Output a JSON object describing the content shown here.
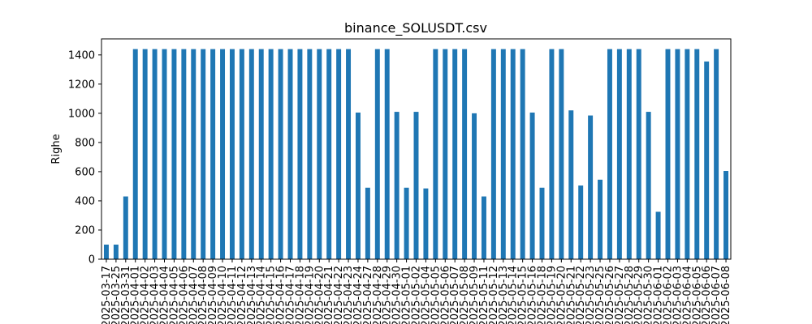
{
  "chart_data": {
    "type": "bar",
    "title": "binance_SOLUSDT.csv",
    "xlabel": "",
    "ylabel": "Righe",
    "ylim": [
      0,
      1510
    ],
    "yticks": [
      0,
      200,
      400,
      600,
      800,
      1000,
      1200,
      1400
    ],
    "grid": false,
    "color": "#1f77b4",
    "categories": [
      "2025-03-17",
      "2025-03-25",
      "2025-03-31",
      "2025-04-01",
      "2025-04-02",
      "2025-04-03",
      "2025-04-04",
      "2025-04-05",
      "2025-04-06",
      "2025-04-07",
      "2025-04-08",
      "2025-04-09",
      "2025-04-10",
      "2025-04-11",
      "2025-04-12",
      "2025-04-13",
      "2025-04-14",
      "2025-04-15",
      "2025-04-16",
      "2025-04-17",
      "2025-04-18",
      "2025-04-19",
      "2025-04-20",
      "2025-04-21",
      "2025-04-22",
      "2025-04-23",
      "2025-04-24",
      "2025-04-27",
      "2025-04-28",
      "2025-04-29",
      "2025-04-30",
      "2025-05-01",
      "2025-05-02",
      "2025-05-04",
      "2025-05-05",
      "2025-05-06",
      "2025-05-07",
      "2025-05-08",
      "2025-05-09",
      "2025-05-11",
      "2025-05-12",
      "2025-05-13",
      "2025-05-14",
      "2025-05-15",
      "2025-05-16",
      "2025-05-18",
      "2025-05-19",
      "2025-05-20",
      "2025-05-21",
      "2025-05-22",
      "2025-05-23",
      "2025-05-25",
      "2025-05-26",
      "2025-05-27",
      "2025-05-28",
      "2025-05-29",
      "2025-05-30",
      "2025-06-01",
      "2025-06-02",
      "2025-06-03",
      "2025-06-04",
      "2025-06-05",
      "2025-06-06",
      "2025-06-07",
      "2025-06-08"
    ],
    "values": [
      100,
      100,
      430,
      1440,
      1440,
      1440,
      1440,
      1440,
      1440,
      1440,
      1440,
      1440,
      1440,
      1440,
      1440,
      1440,
      1440,
      1440,
      1440,
      1440,
      1440,
      1440,
      1440,
      1440,
      1440,
      1440,
      1005,
      490,
      1440,
      1440,
      1010,
      490,
      1010,
      485,
      1440,
      1440,
      1440,
      1440,
      1000,
      430,
      1440,
      1440,
      1440,
      1440,
      1005,
      490,
      1440,
      1440,
      1020,
      505,
      985,
      545,
      1440,
      1440,
      1440,
      1440,
      1010,
      325,
      1440,
      1440,
      1440,
      1440,
      1355,
      1440,
      605
    ]
  }
}
